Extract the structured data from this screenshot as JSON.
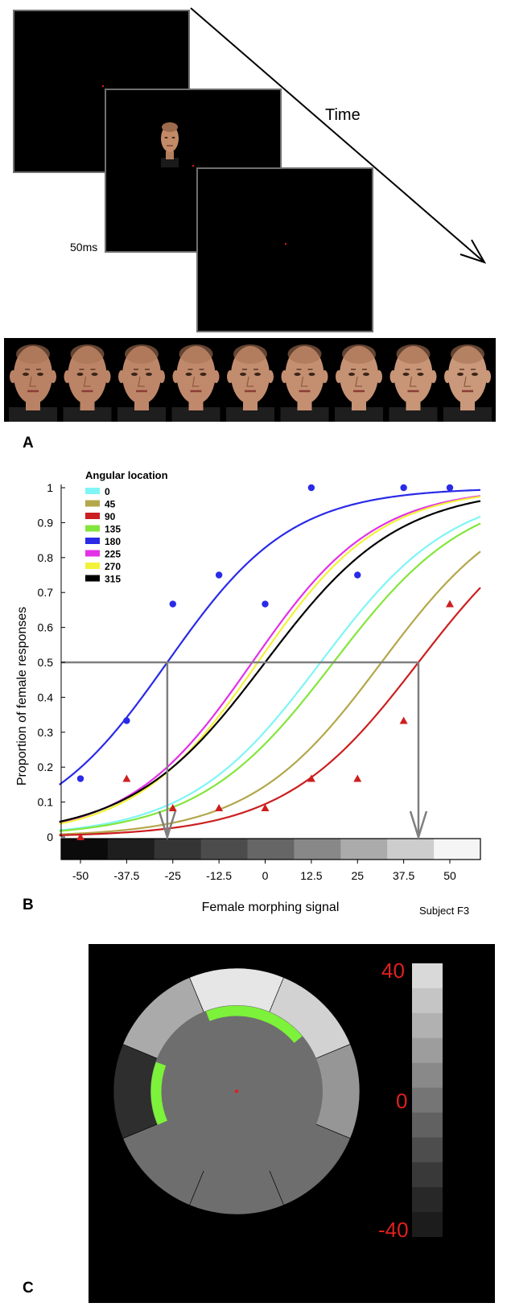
{
  "panel_a": {
    "letter": "A",
    "time_label": "Time",
    "duration_label": "50ms",
    "screen_count": 3,
    "morph_face_count": 9
  },
  "panel_b": {
    "letter": "B",
    "subject_label": "Subject F3",
    "legend_title": "Angular location",
    "chart_data": {
      "type": "line",
      "xlabel": "Female morphing signal",
      "ylabel": "Proportion of female responses",
      "xlim": [
        -55,
        55
      ],
      "ylim": [
        0,
        1
      ],
      "xticks": [
        "-50",
        "-37.5",
        "-25",
        "-12.5",
        "0",
        "12.5",
        "25",
        "37.5",
        "50"
      ],
      "yticks": [
        "0",
        "0.1",
        "0.2",
        "0.3",
        "0.4",
        "0.5",
        "0.6",
        "0.7",
        "0.8",
        "0.9",
        "1"
      ],
      "series": [
        {
          "name": "0",
          "color": "#7ff5f5",
          "pse": 15,
          "slope": 0.0556
        },
        {
          "name": "45",
          "color": "#b3a74b",
          "pse": 31.5,
          "slope": 0.056
        },
        {
          "name": "90",
          "color": "#cc1f1f",
          "pse": 41.5,
          "slope": 0.0545,
          "points": [
            [
              -50,
              0
            ],
            [
              -37.5,
              0.167
            ],
            [
              -25,
              0.083
            ],
            [
              -12.5,
              0.083
            ],
            [
              0,
              0.083
            ],
            [
              12.5,
              0.167
            ],
            [
              25,
              0.167
            ],
            [
              37.5,
              0.333
            ],
            [
              50,
              0.667
            ]
          ]
        },
        {
          "name": "135",
          "color": "#84e63c",
          "pse": 18.5,
          "slope": 0.0546
        },
        {
          "name": "180",
          "color": "#2a2ae8",
          "pse": -26.5,
          "slope": 0.0594,
          "points": [
            [
              -50,
              0.167
            ],
            [
              -37.5,
              0.333
            ],
            [
              -25,
              0.667
            ],
            [
              -12.5,
              0.75
            ],
            [
              0,
              0.667
            ],
            [
              12.5,
              1
            ],
            [
              25,
              0.75
            ],
            [
              37.5,
              1
            ],
            [
              50,
              1
            ]
          ]
        },
        {
          "name": "225",
          "color": "#e331e8",
          "pse": -3.5,
          "slope": 0.0602
        },
        {
          "name": "270",
          "color": "#f2f23a",
          "pse": -2,
          "slope": 0.0604
        },
        {
          "name": "315",
          "color": "#000000",
          "pse": 0,
          "slope": 0.0554
        }
      ],
      "guide": {
        "y": 0.5,
        "x_left": -26.5,
        "x_right": 41.5
      },
      "grayscale_bar": [
        "#0b0b0b",
        "#1e1e1e",
        "#353535",
        "#4c4c4c",
        "#666666",
        "#888888",
        "#ababab",
        "#cdcdcd",
        "#f5f5f5"
      ]
    }
  },
  "panel_c": {
    "letter": "C",
    "scale_max": "40",
    "scale_mid": "0",
    "scale_min": "-40",
    "scale_colors": [
      "#d9d9d9",
      "#c5c5c5",
      "#b1b1b1",
      "#9d9d9d",
      "#898989",
      "#757575",
      "#616161",
      "#4d4d4d",
      "#393939",
      "#282828",
      "#1c1c1c"
    ],
    "outer_sectors": [
      "#e6e6e6",
      "#d2d2d2",
      "#969696",
      "#6e6e6e",
      "#6e6e6e",
      "#6e6e6e",
      "#2e2e2e",
      "#aaaaaa"
    ],
    "inner_color": "#6e6e6e",
    "highlight_color": "#7cf23a"
  }
}
